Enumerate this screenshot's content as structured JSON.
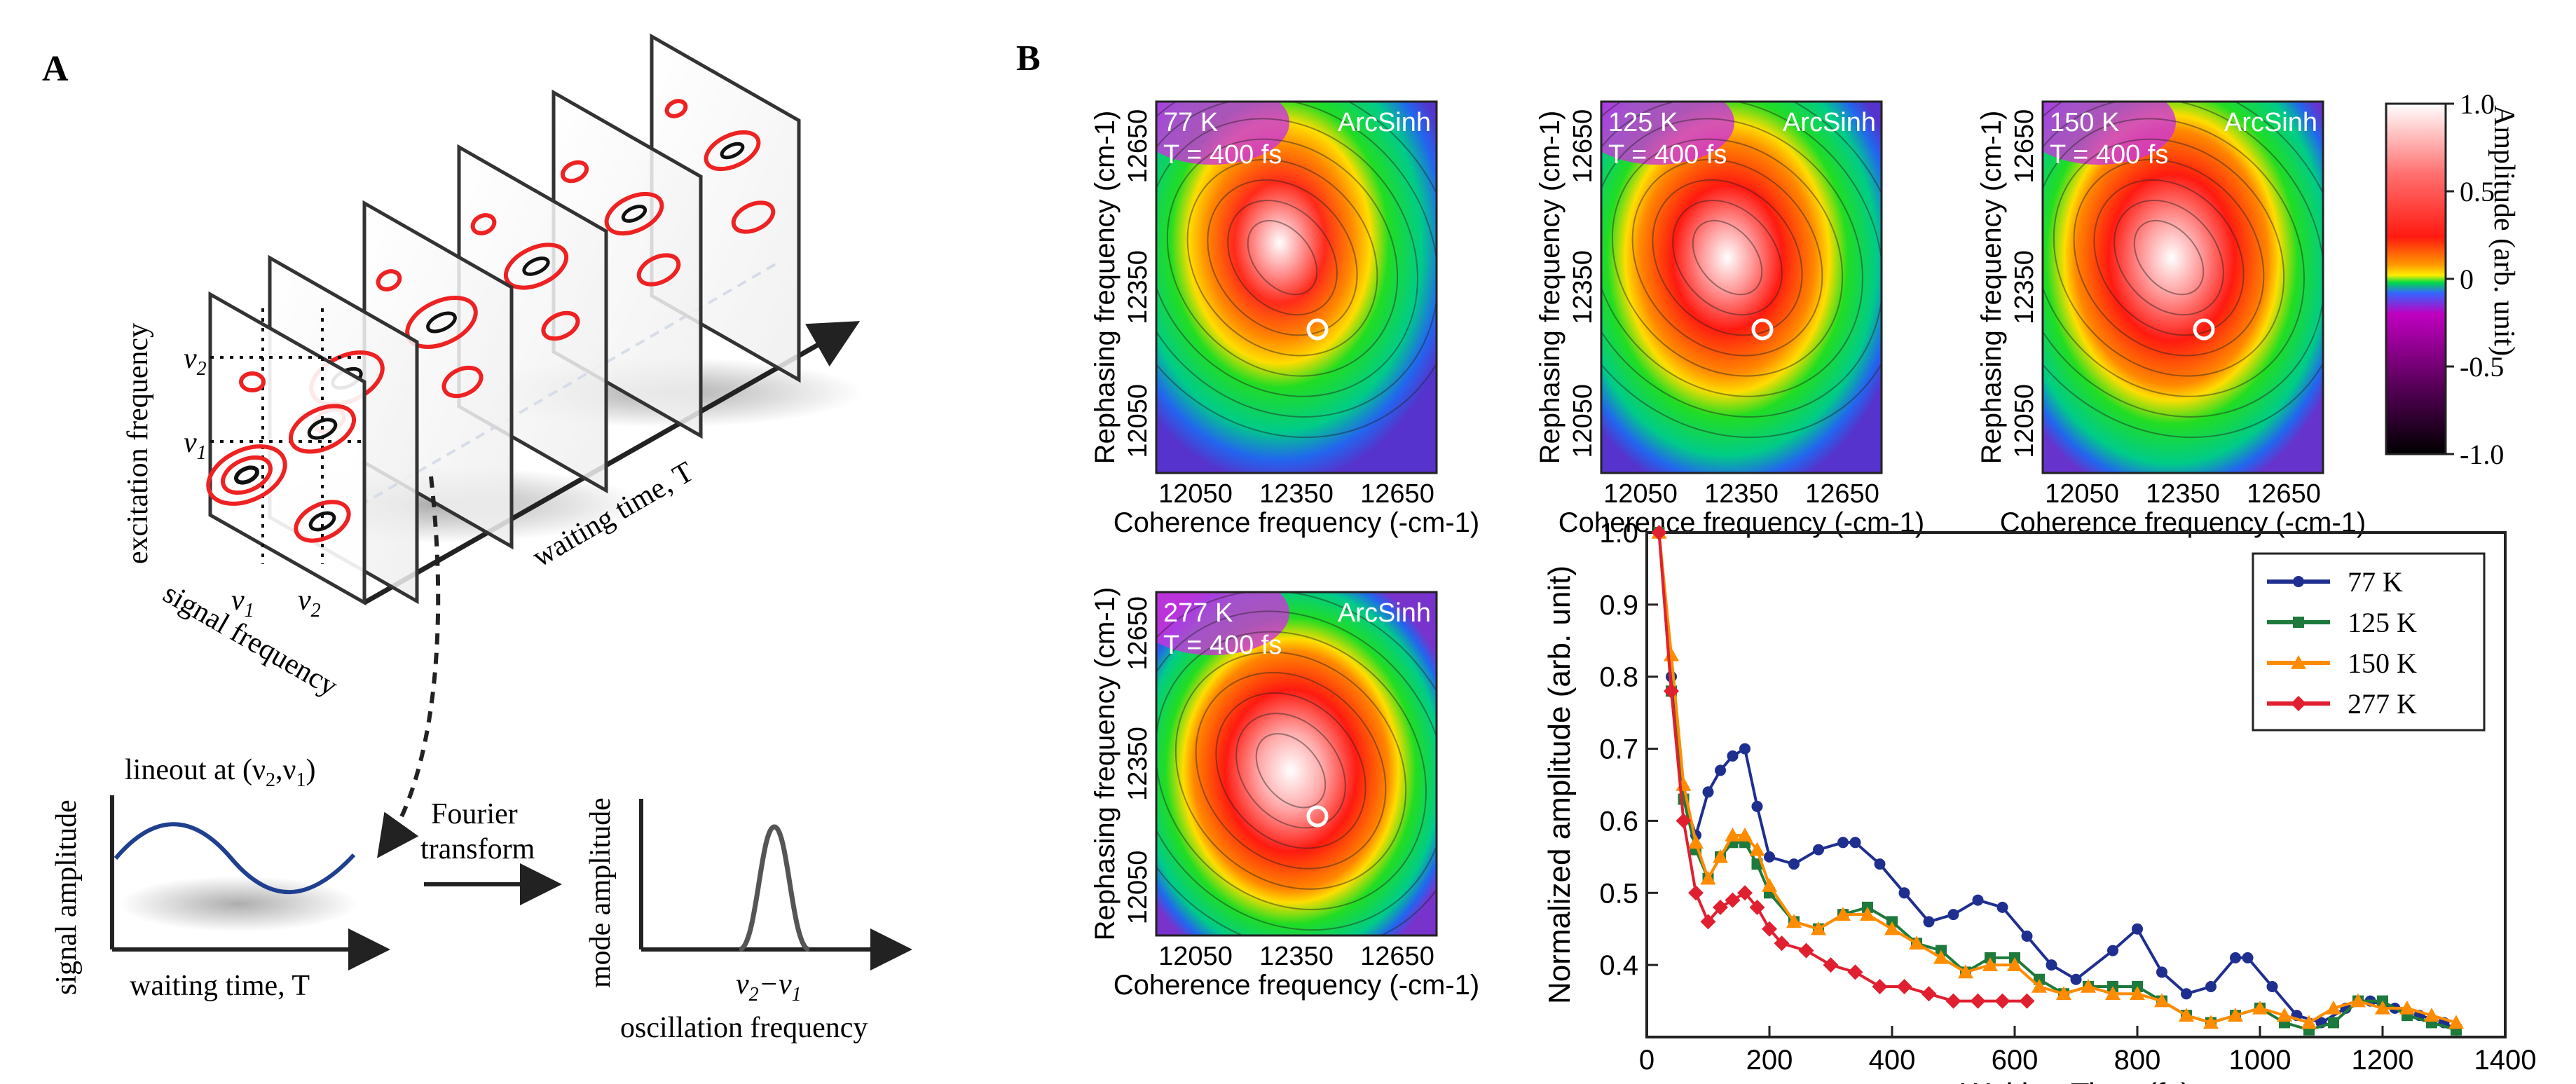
{
  "panel_a": {
    "label": "A",
    "axis_excitation": "excitation frequency",
    "axis_signal": "signal frequency",
    "axis_waiting": "waiting time, T",
    "nu1": "ν",
    "nu2": "ν",
    "sub1": "1",
    "sub2": "2",
    "lineout_label": "lineout at (ν",
    "lineout_sep": ",ν",
    "lineout_end": ")",
    "signal_amplitude": "signal amplitude",
    "waiting_time_small": "waiting time, T",
    "fourier_1": "Fourier",
    "fourier_2": "transform",
    "mode_amplitude": "mode amplitude",
    "diff_label": "ν",
    "diff_minus": "−ν",
    "oscillation_frequency": "oscillation frequency"
  },
  "panel_b": {
    "label": "B",
    "colorbar": {
      "title": "Amplitude (arb. unit)",
      "ticks": [
        "1.0",
        "0.5",
        "0",
        "-0.5",
        "-1.0"
      ],
      "colors": [
        "#ffffff",
        "#ff2222",
        "#ffee00",
        "#00dd44",
        "#c000c0",
        "#000000"
      ]
    },
    "maps": [
      {
        "temp": "77 K",
        "time": "T = 400 fs",
        "tag": "ArcSinh"
      },
      {
        "temp": "125 K",
        "time": "T = 400 fs",
        "tag": "ArcSinh"
      },
      {
        "temp": "150 K",
        "time": "T = 400 fs",
        "tag": "ArcSinh"
      },
      {
        "temp": "277 K",
        "time": "T = 400 fs",
        "tag": "ArcSinh"
      }
    ],
    "map_axes": {
      "ylabel": "Rephasing frequency (cm-1)",
      "xlabel": "Coherence frequency (-cm-1)",
      "xticks": [
        "12050",
        "12350",
        "12650"
      ],
      "yticks": [
        "12650",
        "12350",
        "12050"
      ]
    }
  },
  "chart_data": {
    "type": "line",
    "title": "",
    "xlabel": "Waiting Time (fs)",
    "ylabel": "Normalized amplitude (arb. unit)",
    "xlim": [
      0,
      1400
    ],
    "ylim": [
      0.3,
      1.0
    ],
    "xticks": [
      "0",
      "200",
      "400",
      "600",
      "800",
      "1000",
      "1200",
      "1400"
    ],
    "yticks": [
      "1.0",
      "0.9",
      "0.8",
      "0.7",
      "0.6",
      "0.5",
      "0.4"
    ],
    "legend_position": "top-right",
    "series": [
      {
        "name": "77 K",
        "color": "#1f2f8f",
        "marker": "circle",
        "x": [
          20,
          40,
          60,
          80,
          100,
          120,
          140,
          160,
          180,
          200,
          240,
          280,
          320,
          340,
          380,
          420,
          460,
          500,
          540,
          580,
          620,
          660,
          700,
          760,
          800,
          840,
          880,
          920,
          960,
          980,
          1020,
          1060,
          1100,
          1140,
          1180,
          1220,
          1260,
          1300,
          1320
        ],
        "y": [
          1.0,
          0.8,
          0.63,
          0.58,
          0.64,
          0.67,
          0.69,
          0.7,
          0.62,
          0.55,
          0.54,
          0.56,
          0.57,
          0.57,
          0.54,
          0.5,
          0.46,
          0.47,
          0.49,
          0.48,
          0.44,
          0.4,
          0.38,
          0.42,
          0.45,
          0.39,
          0.36,
          0.37,
          0.41,
          0.41,
          0.37,
          0.33,
          0.32,
          0.34,
          0.35,
          0.34,
          0.33,
          0.32,
          0.31
        ]
      },
      {
        "name": "125 K",
        "color": "#1e7a3c",
        "marker": "square",
        "x": [
          20,
          40,
          60,
          80,
          100,
          120,
          140,
          160,
          180,
          200,
          240,
          280,
          320,
          360,
          400,
          440,
          480,
          520,
          560,
          600,
          640,
          680,
          720,
          760,
          800,
          840,
          880,
          920,
          960,
          1000,
          1040,
          1080,
          1120,
          1160,
          1200,
          1240,
          1280,
          1320
        ],
        "y": [
          1.0,
          0.78,
          0.63,
          0.56,
          0.52,
          0.55,
          0.57,
          0.57,
          0.54,
          0.5,
          0.46,
          0.45,
          0.47,
          0.48,
          0.46,
          0.43,
          0.42,
          0.39,
          0.41,
          0.41,
          0.38,
          0.36,
          0.37,
          0.37,
          0.37,
          0.35,
          0.33,
          0.32,
          0.33,
          0.34,
          0.32,
          0.31,
          0.32,
          0.35,
          0.35,
          0.33,
          0.32,
          0.31
        ]
      },
      {
        "name": "150 K",
        "color": "#ff8c00",
        "marker": "triangle",
        "x": [
          20,
          40,
          60,
          80,
          100,
          120,
          140,
          160,
          180,
          200,
          240,
          280,
          320,
          360,
          400,
          440,
          480,
          520,
          560,
          600,
          640,
          680,
          720,
          760,
          800,
          840,
          880,
          920,
          960,
          1000,
          1040,
          1080,
          1120,
          1160,
          1200,
          1240,
          1280,
          1320
        ],
        "y": [
          1.0,
          0.83,
          0.65,
          0.57,
          0.52,
          0.55,
          0.58,
          0.58,
          0.56,
          0.51,
          0.46,
          0.45,
          0.47,
          0.47,
          0.45,
          0.43,
          0.41,
          0.39,
          0.4,
          0.4,
          0.37,
          0.36,
          0.37,
          0.36,
          0.36,
          0.35,
          0.33,
          0.32,
          0.33,
          0.34,
          0.33,
          0.32,
          0.34,
          0.35,
          0.34,
          0.34,
          0.33,
          0.32
        ]
      },
      {
        "name": "277 K",
        "color": "#e02030",
        "marker": "diamond",
        "x": [
          20,
          40,
          60,
          80,
          100,
          120,
          140,
          160,
          180,
          200,
          220,
          260,
          300,
          340,
          380,
          420,
          460,
          500,
          540,
          580,
          620
        ],
        "y": [
          1.0,
          0.78,
          0.6,
          0.5,
          0.46,
          0.48,
          0.49,
          0.5,
          0.48,
          0.45,
          0.43,
          0.42,
          0.4,
          0.39,
          0.37,
          0.37,
          0.36,
          0.35,
          0.35,
          0.35,
          0.35
        ]
      }
    ]
  }
}
